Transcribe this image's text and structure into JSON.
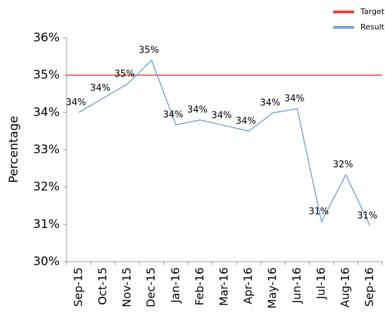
{
  "chart_data": {
    "type": "line",
    "y_label": "Percentage",
    "categories": [
      "Sep-15",
      "Oct-15",
      "Nov-15",
      "Dec-15",
      "Jan-16",
      "Feb-16",
      "Mar-16",
      "Apr-16",
      "May-16",
      "Jun-16",
      "Jul-16",
      "Aug-16",
      "Sep-16"
    ],
    "series": [
      {
        "name": "Target",
        "color": "#e8403a",
        "values": [
          35,
          35,
          35,
          35,
          35,
          35,
          35,
          35,
          35,
          35,
          35,
          35,
          35
        ]
      },
      {
        "name": "Result",
        "color": "#7ba3d8",
        "values": [
          34.0,
          34.38,
          34.76,
          35.4,
          33.67,
          33.8,
          33.65,
          33.5,
          33.99,
          34.1,
          31.07,
          32.33,
          30.96
        ],
        "value_labels": [
          "34%",
          "34%",
          "35%",
          "35%",
          "34%",
          "34%",
          "34%",
          "34%",
          "34%",
          "34%",
          "31%",
          "32%",
          "31%"
        ]
      }
    ],
    "ylim": [
      30,
      36
    ],
    "yticks": [
      {
        "value": 30,
        "label": "30%"
      },
      {
        "value": 31,
        "label": "31%"
      },
      {
        "value": 32,
        "label": "32%"
      },
      {
        "value": 33,
        "label": "33%"
      },
      {
        "value": 34,
        "label": "34%"
      },
      {
        "value": 35,
        "label": "35%"
      },
      {
        "value": 36,
        "label": "36%"
      }
    ],
    "grid": false,
    "legend": "top-right"
  }
}
